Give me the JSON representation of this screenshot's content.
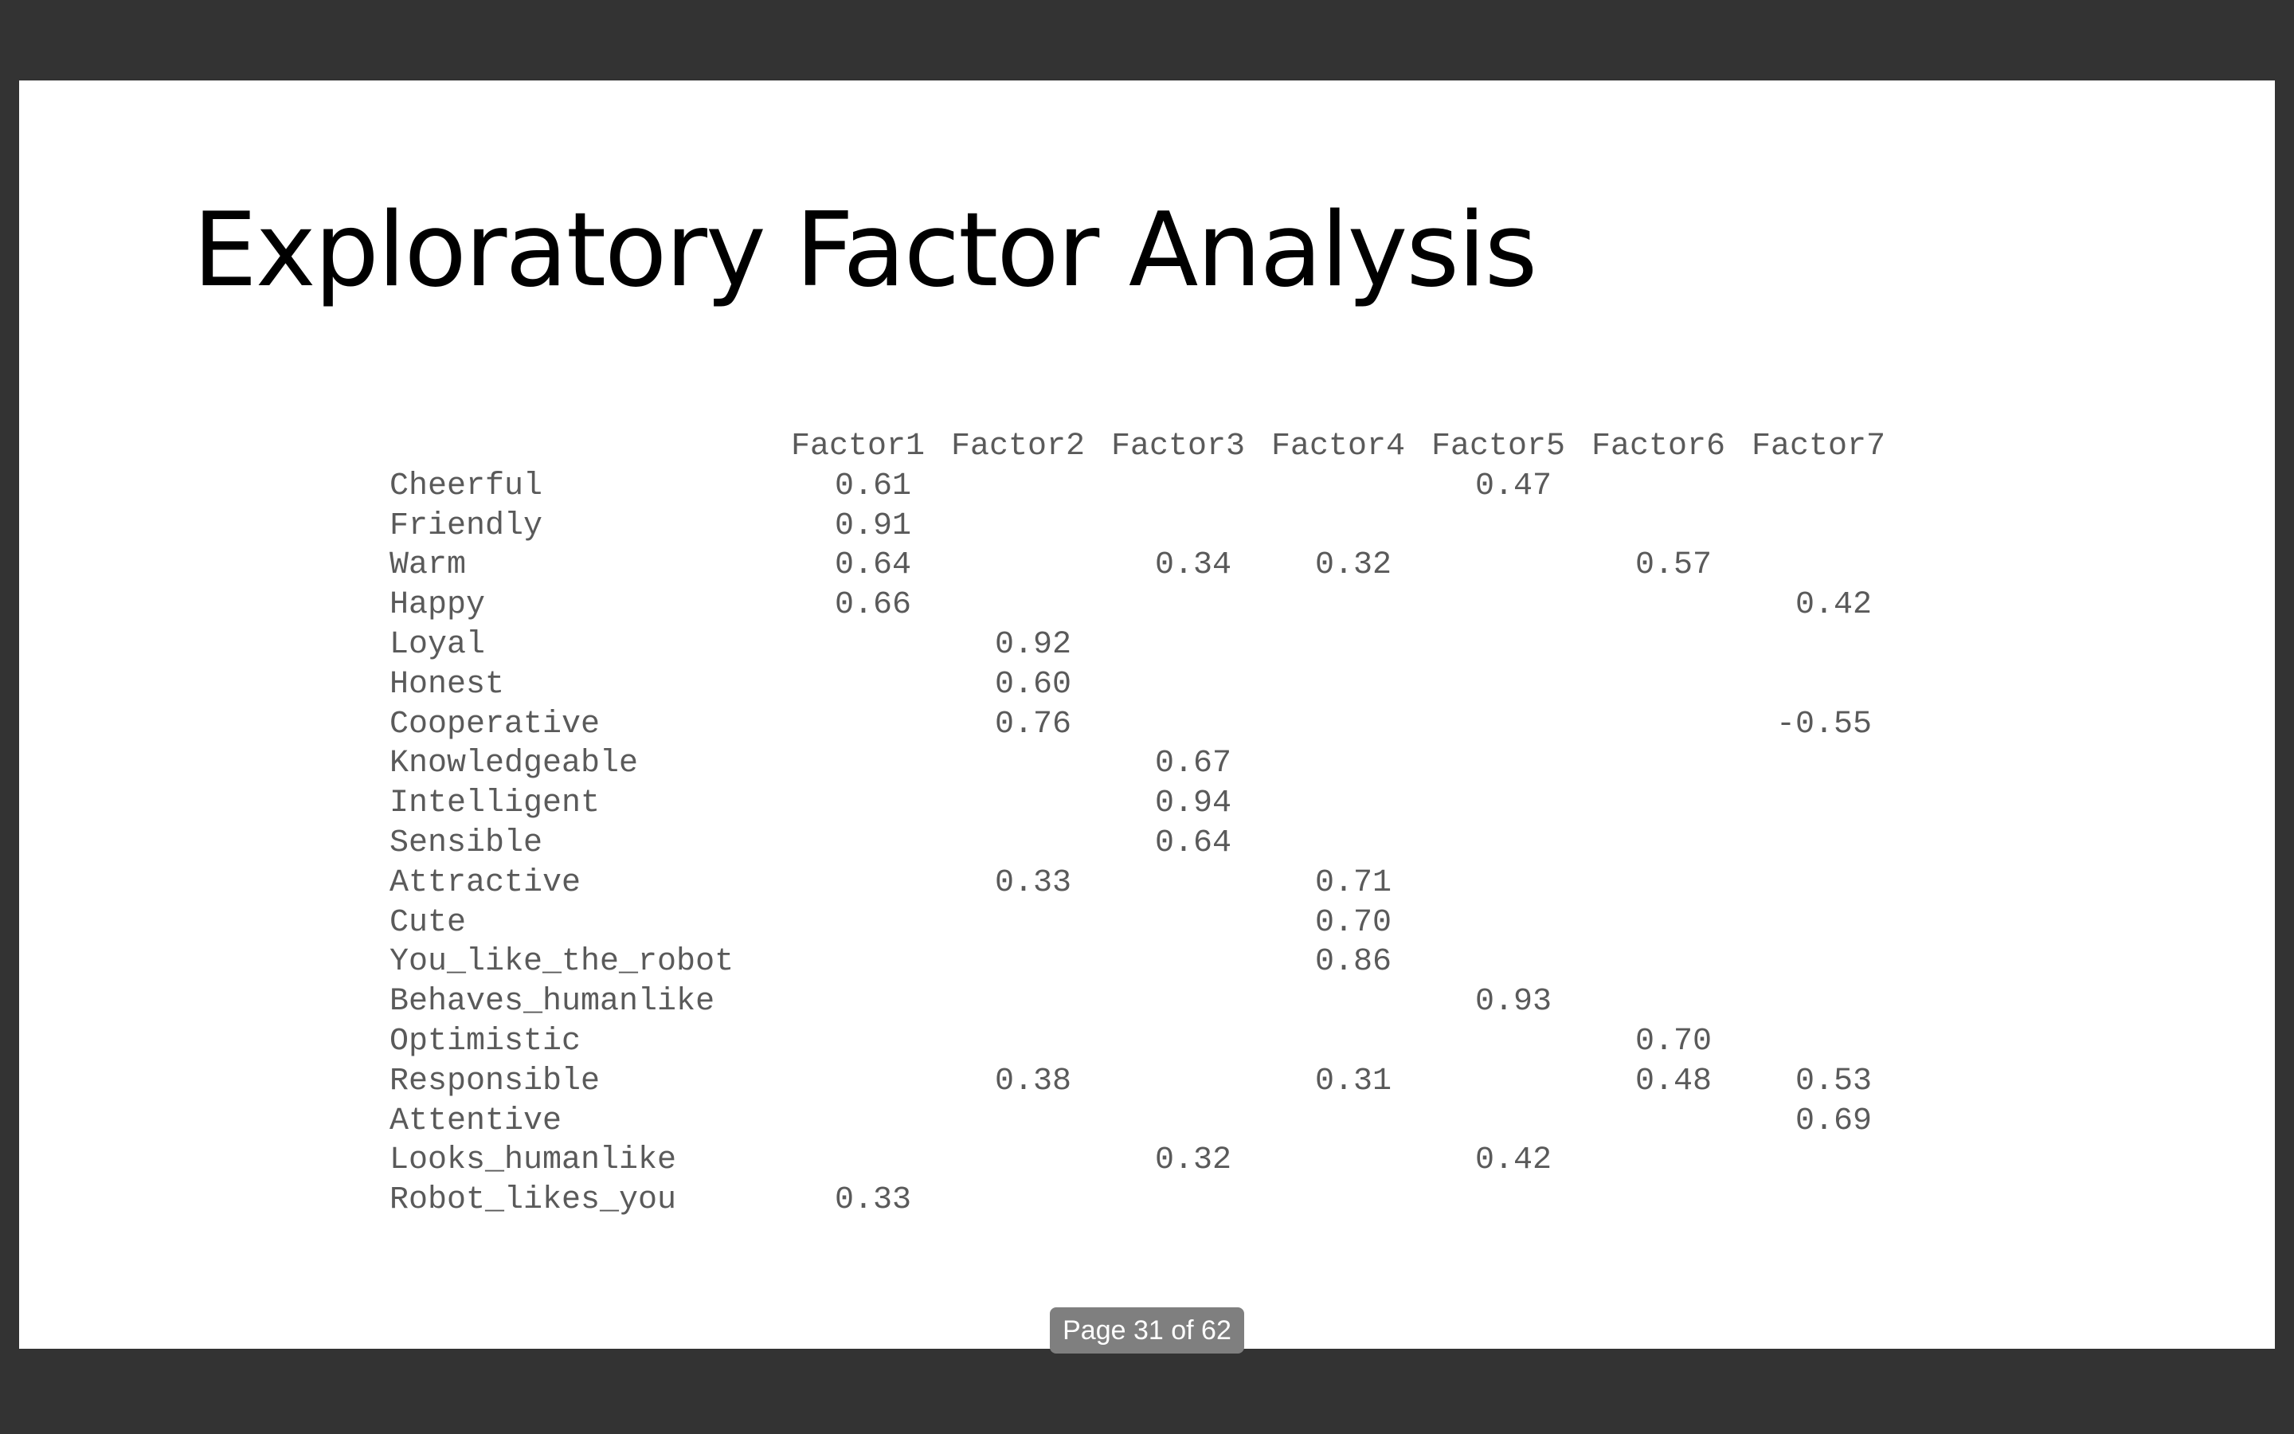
{
  "slide": {
    "title": "Exploratory Factor Analysis"
  },
  "table": {
    "columns": [
      "Factor1",
      "Factor2",
      "Factor3",
      "Factor4",
      "Factor5",
      "Factor6",
      "Factor7"
    ],
    "rows": [
      {
        "label": "Cheerful",
        "values": [
          "0.61",
          "",
          "",
          "",
          "0.47",
          "",
          ""
        ]
      },
      {
        "label": "Friendly",
        "values": [
          "0.91",
          "",
          "",
          "",
          "",
          "",
          ""
        ]
      },
      {
        "label": "Warm",
        "values": [
          "0.64",
          "",
          "0.34",
          "0.32",
          "",
          "0.57",
          ""
        ]
      },
      {
        "label": "Happy",
        "values": [
          "0.66",
          "",
          "",
          "",
          "",
          "",
          "0.42"
        ]
      },
      {
        "label": "Loyal",
        "values": [
          "",
          "0.92",
          "",
          "",
          "",
          "",
          ""
        ]
      },
      {
        "label": "Honest",
        "values": [
          "",
          "0.60",
          "",
          "",
          "",
          "",
          ""
        ]
      },
      {
        "label": "Cooperative",
        "values": [
          "",
          "0.76",
          "",
          "",
          "",
          "",
          "-0.55"
        ]
      },
      {
        "label": "Knowledgeable",
        "values": [
          "",
          "",
          "0.67",
          "",
          "",
          "",
          ""
        ]
      },
      {
        "label": "Intelligent",
        "values": [
          "",
          "",
          "0.94",
          "",
          "",
          "",
          ""
        ]
      },
      {
        "label": "Sensible",
        "values": [
          "",
          "",
          "0.64",
          "",
          "",
          "",
          ""
        ]
      },
      {
        "label": "Attractive",
        "values": [
          "",
          "0.33",
          "",
          "0.71",
          "",
          "",
          ""
        ]
      },
      {
        "label": "Cute",
        "values": [
          "",
          "",
          "",
          "0.70",
          "",
          "",
          ""
        ]
      },
      {
        "label": "You_like_the_robot",
        "values": [
          "",
          "",
          "",
          "0.86",
          "",
          "",
          ""
        ]
      },
      {
        "label": "Behaves_humanlike",
        "values": [
          "",
          "",
          "",
          "",
          "0.93",
          "",
          ""
        ]
      },
      {
        "label": "Optimistic",
        "values": [
          "",
          "",
          "",
          "",
          "",
          "0.70",
          ""
        ]
      },
      {
        "label": "Responsible",
        "values": [
          "",
          "0.38",
          "",
          "0.31",
          "",
          "0.48",
          "0.53"
        ]
      },
      {
        "label": "Attentive",
        "values": [
          "",
          "",
          "",
          "",
          "",
          "",
          "0.69"
        ]
      },
      {
        "label": "Looks_humanlike",
        "values": [
          "",
          "",
          "0.32",
          "",
          "0.42",
          "",
          ""
        ]
      },
      {
        "label": "Robot_likes_you",
        "values": [
          "0.33",
          "",
          "",
          "",
          "",
          "",
          ""
        ]
      }
    ]
  },
  "viewer": {
    "page_indicator": "Page 31 of 62"
  }
}
